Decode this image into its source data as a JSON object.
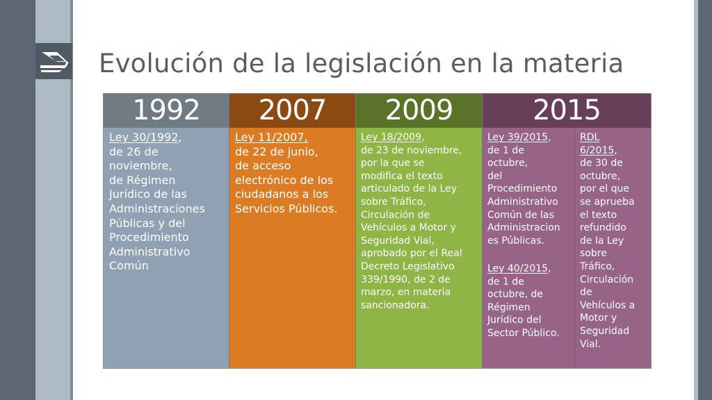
{
  "slide": {
    "title": "Evolución de la legislación en la materia",
    "logo_icon": "institution-logo-icon"
  },
  "timeline": [
    {
      "year": "1992",
      "blocks": [
        {
          "lines": [
            {
              "text": "Ley 30/1992",
              "link": true,
              "suffix": ","
            },
            {
              "text": "de 26 de"
            },
            {
              "text": "noviembre,"
            },
            {
              "text": "de Régimen"
            },
            {
              "text": "Jurídico de las"
            },
            {
              "text": "Administraciones"
            },
            {
              "text": "Públicas y del"
            },
            {
              "text": "Procedimiento"
            },
            {
              "text": "Administrativo"
            },
            {
              "text": "Común"
            }
          ]
        }
      ]
    },
    {
      "year": "2007",
      "blocks": [
        {
          "lines": [
            {
              "text": "Ley 11/2007,",
              "link": true
            },
            {
              "text": "de 22 de junio,"
            },
            {
              "text": "de acceso"
            },
            {
              "text": "electrónico de los"
            },
            {
              "text": "ciudadanos a los"
            },
            {
              "text": "Servicios Públicos."
            }
          ]
        }
      ]
    },
    {
      "year": "2009",
      "blocks": [
        {
          "lines": [
            {
              "text": "Ley 18/2009",
              "link": true,
              "suffix": ","
            },
            {
              "text": "de 23 de noviembre,"
            },
            {
              "text": "por la que se"
            },
            {
              "text": "modifica el texto"
            },
            {
              "text": "articulado de la Ley"
            },
            {
              "text": "sobre Tráfico,"
            },
            {
              "text": "Circulación de"
            },
            {
              "text": "Vehículos a Motor y"
            },
            {
              "text": "Seguridad Vial,"
            },
            {
              "text": "aprobado por el Real"
            },
            {
              "text": "Decreto Legislativo"
            },
            {
              "text": "339/1990, de 2 de"
            },
            {
              "text": "marzo, en materia"
            },
            {
              "text": "sancionadora."
            }
          ]
        }
      ]
    },
    {
      "year": "2015",
      "blocks": [
        {
          "lines": [
            {
              "text": "Ley 39/2015",
              "link": true,
              "suffix": ","
            },
            {
              "text": "de 1 de"
            },
            {
              "text": "octubre,"
            },
            {
              "text": "del"
            },
            {
              "text": "Procedimiento"
            },
            {
              "text": "Administrativo"
            },
            {
              "text": "Común de las"
            },
            {
              "text": "Administracion"
            },
            {
              "text": "es Públicas."
            }
          ]
        },
        {
          "lines": [
            {
              "text": "Ley 40/2015",
              "link": true,
              "suffix": ","
            },
            {
              "text": "de 1 de"
            },
            {
              "text": "octubre, de"
            },
            {
              "text": "Régimen"
            },
            {
              "text": "Jurídico del"
            },
            {
              "text": "Sector Público."
            }
          ]
        },
        {
          "lines": [
            {
              "text": "RDL",
              "link": true
            },
            {
              "text": "6/2015",
              "link": true,
              "suffix": ","
            },
            {
              "text": "de 30 de"
            },
            {
              "text": "octubre,"
            },
            {
              "text": "por el que"
            },
            {
              "text": "se aprueba"
            },
            {
              "text": "el texto"
            },
            {
              "text": "refundido"
            },
            {
              "text": "de la Ley"
            },
            {
              "text": "sobre"
            },
            {
              "text": "Tráfico,"
            },
            {
              "text": "Circulación"
            },
            {
              "text": "de"
            },
            {
              "text": "Vehículos a"
            },
            {
              "text": "Motor y"
            },
            {
              "text": "Seguridad"
            },
            {
              "text": "Vial."
            }
          ]
        }
      ]
    }
  ]
}
